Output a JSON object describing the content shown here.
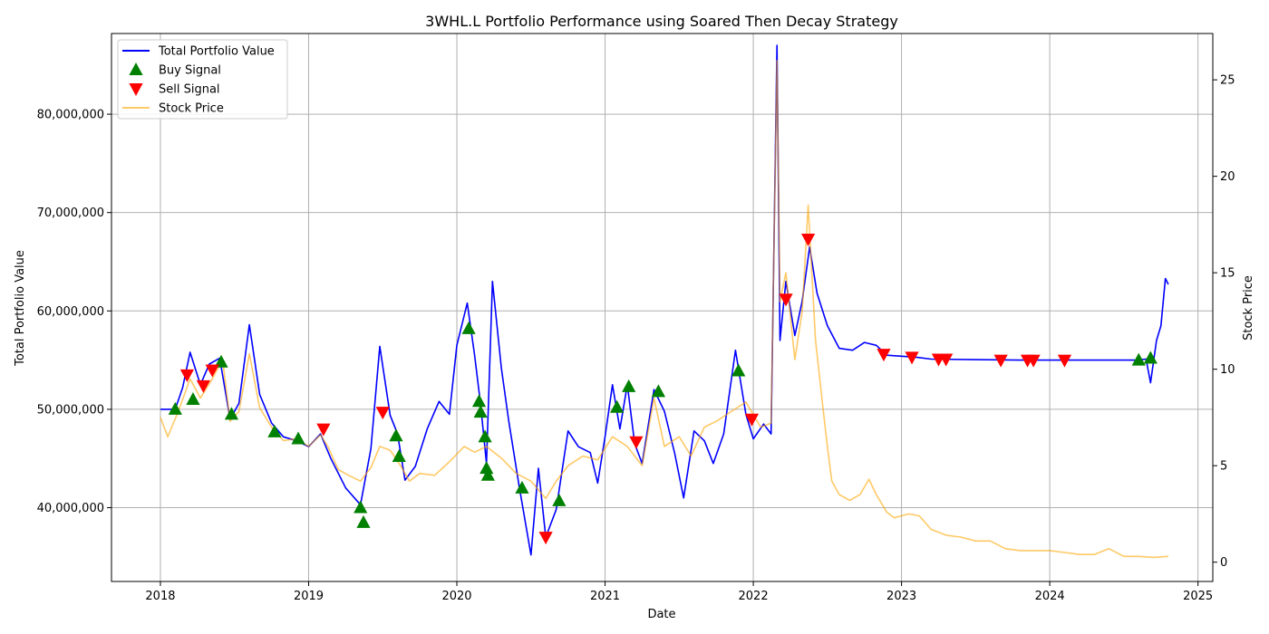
{
  "chart_data": {
    "type": "line",
    "title": "3WHL.L Portfolio Performance using Soared Then Decay Strategy",
    "xlabel": "Date",
    "ylabel_left": "Total Portfolio Value",
    "ylabel_right": "Stock Price",
    "x_range": [
      2017.67,
      2025.1
    ],
    "x_ticks": [
      "2018",
      "2019",
      "2020",
      "2021",
      "2022",
      "2023",
      "2024",
      "2025"
    ],
    "y_left_range": [
      32500000,
      88200000
    ],
    "y_left_ticks": [
      {
        "value": 40000000,
        "label": "40,000,000"
      },
      {
        "value": 50000000,
        "label": "50,000,000"
      },
      {
        "value": 60000000,
        "label": "60,000,000"
      },
      {
        "value": 70000000,
        "label": "70,000,000"
      },
      {
        "value": 80000000,
        "label": "80,000,000"
      }
    ],
    "y_right_range": [
      -1.0,
      27.4
    ],
    "y_right_ticks": [
      0,
      5,
      10,
      15,
      20,
      25
    ],
    "grid": true,
    "legend_position": "top-left",
    "colors": {
      "portfolio": "#0000ff",
      "buy": "#008000",
      "sell": "#ff0000",
      "stock": "#ffa500",
      "grid": "#b0b0b0"
    },
    "legend": [
      {
        "key": "portfolio",
        "label": "Total Portfolio Value",
        "kind": "line"
      },
      {
        "key": "buy",
        "label": "Buy Signal",
        "kind": "up-triangle"
      },
      {
        "key": "sell",
        "label": "Sell Signal",
        "kind": "down-triangle"
      },
      {
        "key": "stock",
        "label": "Stock Price",
        "kind": "line"
      }
    ],
    "series": [
      {
        "name": "Total Portfolio Value",
        "axis": "left",
        "points": [
          [
            2018.0,
            50000000
          ],
          [
            2018.1,
            50000000
          ],
          [
            2018.15,
            52200000
          ],
          [
            2018.2,
            55800000
          ],
          [
            2018.27,
            52500000
          ],
          [
            2018.33,
            54600000
          ],
          [
            2018.4,
            55200000
          ],
          [
            2018.47,
            49000000
          ],
          [
            2018.53,
            50600000
          ],
          [
            2018.6,
            58600000
          ],
          [
            2018.67,
            51500000
          ],
          [
            2018.75,
            48600000
          ],
          [
            2018.83,
            47200000
          ],
          [
            2018.92,
            46800000
          ],
          [
            2019.0,
            46200000
          ],
          [
            2019.08,
            47500000
          ],
          [
            2019.15,
            45000000
          ],
          [
            2019.25,
            42000000
          ],
          [
            2019.35,
            40300000
          ],
          [
            2019.42,
            46000000
          ],
          [
            2019.48,
            56400000
          ],
          [
            2019.55,
            49400000
          ],
          [
            2019.6,
            47500000
          ],
          [
            2019.65,
            42800000
          ],
          [
            2019.72,
            44200000
          ],
          [
            2019.8,
            48000000
          ],
          [
            2019.88,
            50800000
          ],
          [
            2019.95,
            49500000
          ],
          [
            2020.0,
            56500000
          ],
          [
            2020.07,
            60800000
          ],
          [
            2020.12,
            55500000
          ],
          [
            2020.16,
            50500000
          ],
          [
            2020.2,
            44500000
          ],
          [
            2020.24,
            63000000
          ],
          [
            2020.3,
            54200000
          ],
          [
            2020.35,
            48800000
          ],
          [
            2020.42,
            42200000
          ],
          [
            2020.5,
            35200000
          ],
          [
            2020.55,
            44000000
          ],
          [
            2020.6,
            37000000
          ],
          [
            2020.67,
            39800000
          ],
          [
            2020.75,
            47800000
          ],
          [
            2020.82,
            46200000
          ],
          [
            2020.9,
            45600000
          ],
          [
            2020.95,
            42500000
          ],
          [
            2021.0,
            47200000
          ],
          [
            2021.05,
            52500000
          ],
          [
            2021.1,
            48000000
          ],
          [
            2021.15,
            52500000
          ],
          [
            2021.2,
            46500000
          ],
          [
            2021.25,
            44500000
          ],
          [
            2021.33,
            52000000
          ],
          [
            2021.4,
            49800000
          ],
          [
            2021.47,
            45500000
          ],
          [
            2021.53,
            41000000
          ],
          [
            2021.6,
            47800000
          ],
          [
            2021.67,
            46800000
          ],
          [
            2021.73,
            44500000
          ],
          [
            2021.8,
            47500000
          ],
          [
            2021.88,
            56000000
          ],
          [
            2021.95,
            49500000
          ],
          [
            2022.0,
            47000000
          ],
          [
            2022.07,
            48500000
          ],
          [
            2022.12,
            47500000
          ],
          [
            2022.16,
            87000000
          ],
          [
            2022.18,
            57000000
          ],
          [
            2022.22,
            63000000
          ],
          [
            2022.28,
            57500000
          ],
          [
            2022.33,
            61000000
          ],
          [
            2022.38,
            66500000
          ],
          [
            2022.43,
            61800000
          ],
          [
            2022.5,
            58500000
          ],
          [
            2022.58,
            56200000
          ],
          [
            2022.67,
            56000000
          ],
          [
            2022.75,
            56800000
          ],
          [
            2022.83,
            56500000
          ],
          [
            2022.9,
            55500000
          ],
          [
            2023.0,
            55400000
          ],
          [
            2023.1,
            55300000
          ],
          [
            2023.2,
            55100000
          ],
          [
            2023.5,
            55050000
          ],
          [
            2023.8,
            55000000
          ],
          [
            2024.0,
            55000000
          ],
          [
            2024.3,
            55000000
          ],
          [
            2024.58,
            55000000
          ],
          [
            2024.65,
            55100000
          ],
          [
            2024.68,
            52700000
          ],
          [
            2024.72,
            57000000
          ],
          [
            2024.75,
            58500000
          ],
          [
            2024.78,
            63300000
          ],
          [
            2024.8,
            62700000
          ]
        ]
      },
      {
        "name": "Stock Price",
        "axis": "right",
        "points": [
          [
            2018.0,
            7.5
          ],
          [
            2018.05,
            6.5
          ],
          [
            2018.12,
            7.8
          ],
          [
            2018.2,
            9.5
          ],
          [
            2018.27,
            8.5
          ],
          [
            2018.35,
            9.5
          ],
          [
            2018.42,
            10.5
          ],
          [
            2018.47,
            7.3
          ],
          [
            2018.53,
            7.8
          ],
          [
            2018.6,
            10.8
          ],
          [
            2018.67,
            8.0
          ],
          [
            2018.75,
            7.0
          ],
          [
            2018.83,
            6.3
          ],
          [
            2018.92,
            6.4
          ],
          [
            2019.0,
            6.0
          ],
          [
            2019.08,
            6.6
          ],
          [
            2019.13,
            6.0
          ],
          [
            2019.2,
            4.8
          ],
          [
            2019.27,
            4.5
          ],
          [
            2019.35,
            4.2
          ],
          [
            2019.42,
            4.9
          ],
          [
            2019.48,
            6.0
          ],
          [
            2019.55,
            5.8
          ],
          [
            2019.62,
            5.0
          ],
          [
            2019.68,
            4.2
          ],
          [
            2019.75,
            4.6
          ],
          [
            2019.85,
            4.5
          ],
          [
            2019.95,
            5.2
          ],
          [
            2020.05,
            6.0
          ],
          [
            2020.12,
            5.7
          ],
          [
            2020.2,
            6.0
          ],
          [
            2020.3,
            5.4
          ],
          [
            2020.4,
            4.6
          ],
          [
            2020.5,
            4.2
          ],
          [
            2020.6,
            3.3
          ],
          [
            2020.67,
            4.2
          ],
          [
            2020.75,
            5.0
          ],
          [
            2020.85,
            5.5
          ],
          [
            2020.95,
            5.3
          ],
          [
            2021.05,
            6.5
          ],
          [
            2021.15,
            6.0
          ],
          [
            2021.25,
            5.0
          ],
          [
            2021.33,
            8.5
          ],
          [
            2021.4,
            6.0
          ],
          [
            2021.5,
            6.5
          ],
          [
            2021.58,
            5.5
          ],
          [
            2021.67,
            7.0
          ],
          [
            2021.75,
            7.3
          ],
          [
            2021.85,
            7.8
          ],
          [
            2021.95,
            8.3
          ],
          [
            2022.05,
            7.0
          ],
          [
            2022.12,
            7.2
          ],
          [
            2022.16,
            26.0
          ],
          [
            2022.18,
            13.5
          ],
          [
            2022.22,
            15.0
          ],
          [
            2022.28,
            10.5
          ],
          [
            2022.33,
            13.0
          ],
          [
            2022.37,
            18.5
          ],
          [
            2022.42,
            11.5
          ],
          [
            2022.47,
            8.0
          ],
          [
            2022.5,
            6.0
          ],
          [
            2022.53,
            4.2
          ],
          [
            2022.58,
            3.5
          ],
          [
            2022.65,
            3.2
          ],
          [
            2022.72,
            3.5
          ],
          [
            2022.78,
            4.3
          ],
          [
            2022.83,
            3.5
          ],
          [
            2022.9,
            2.6
          ],
          [
            2022.95,
            2.3
          ],
          [
            2023.05,
            2.5
          ],
          [
            2023.12,
            2.4
          ],
          [
            2023.2,
            1.7
          ],
          [
            2023.3,
            1.4
          ],
          [
            2023.4,
            1.3
          ],
          [
            2023.5,
            1.1
          ],
          [
            2023.6,
            1.1
          ],
          [
            2023.7,
            0.7
          ],
          [
            2023.8,
            0.6
          ],
          [
            2023.9,
            0.6
          ],
          [
            2024.0,
            0.6
          ],
          [
            2024.1,
            0.5
          ],
          [
            2024.2,
            0.4
          ],
          [
            2024.3,
            0.4
          ],
          [
            2024.4,
            0.7
          ],
          [
            2024.5,
            0.3
          ],
          [
            2024.6,
            0.3
          ],
          [
            2024.7,
            0.25
          ],
          [
            2024.8,
            0.3
          ]
        ]
      }
    ],
    "buy_signals": [
      [
        2018.1,
        50000000
      ],
      [
        2018.22,
        51000000
      ],
      [
        2018.41,
        54800000
      ],
      [
        2018.48,
        49500000
      ],
      [
        2018.77,
        47700000
      ],
      [
        2018.93,
        47000000
      ],
      [
        2019.35,
        40000000
      ],
      [
        2019.37,
        38500000
      ],
      [
        2019.59,
        47300000
      ],
      [
        2019.61,
        45200000
      ],
      [
        2020.08,
        58200000
      ],
      [
        2020.15,
        50800000
      ],
      [
        2020.16,
        49700000
      ],
      [
        2020.19,
        47200000
      ],
      [
        2020.2,
        44000000
      ],
      [
        2020.21,
        43300000
      ],
      [
        2020.44,
        42000000
      ],
      [
        2020.69,
        40700000
      ],
      [
        2021.08,
        50200000
      ],
      [
        2021.16,
        52300000
      ],
      [
        2021.36,
        51800000
      ],
      [
        2021.9,
        53900000
      ],
      [
        2024.6,
        55000000
      ],
      [
        2024.68,
        55200000
      ]
    ],
    "sell_signals": [
      [
        2018.18,
        53500000
      ],
      [
        2018.29,
        52400000
      ],
      [
        2018.35,
        54000000
      ],
      [
        2019.1,
        48000000
      ],
      [
        2019.5,
        49700000
      ],
      [
        2020.6,
        37000000
      ],
      [
        2021.21,
        46700000
      ],
      [
        2021.99,
        49000000
      ],
      [
        2022.22,
        61200000
      ],
      [
        2022.37,
        67300000
      ],
      [
        2022.88,
        55600000
      ],
      [
        2023.07,
        55300000
      ],
      [
        2023.25,
        55100000
      ],
      [
        2023.3,
        55100000
      ],
      [
        2023.67,
        55000000
      ],
      [
        2023.85,
        55000000
      ],
      [
        2023.89,
        55000000
      ],
      [
        2024.1,
        55000000
      ]
    ]
  }
}
